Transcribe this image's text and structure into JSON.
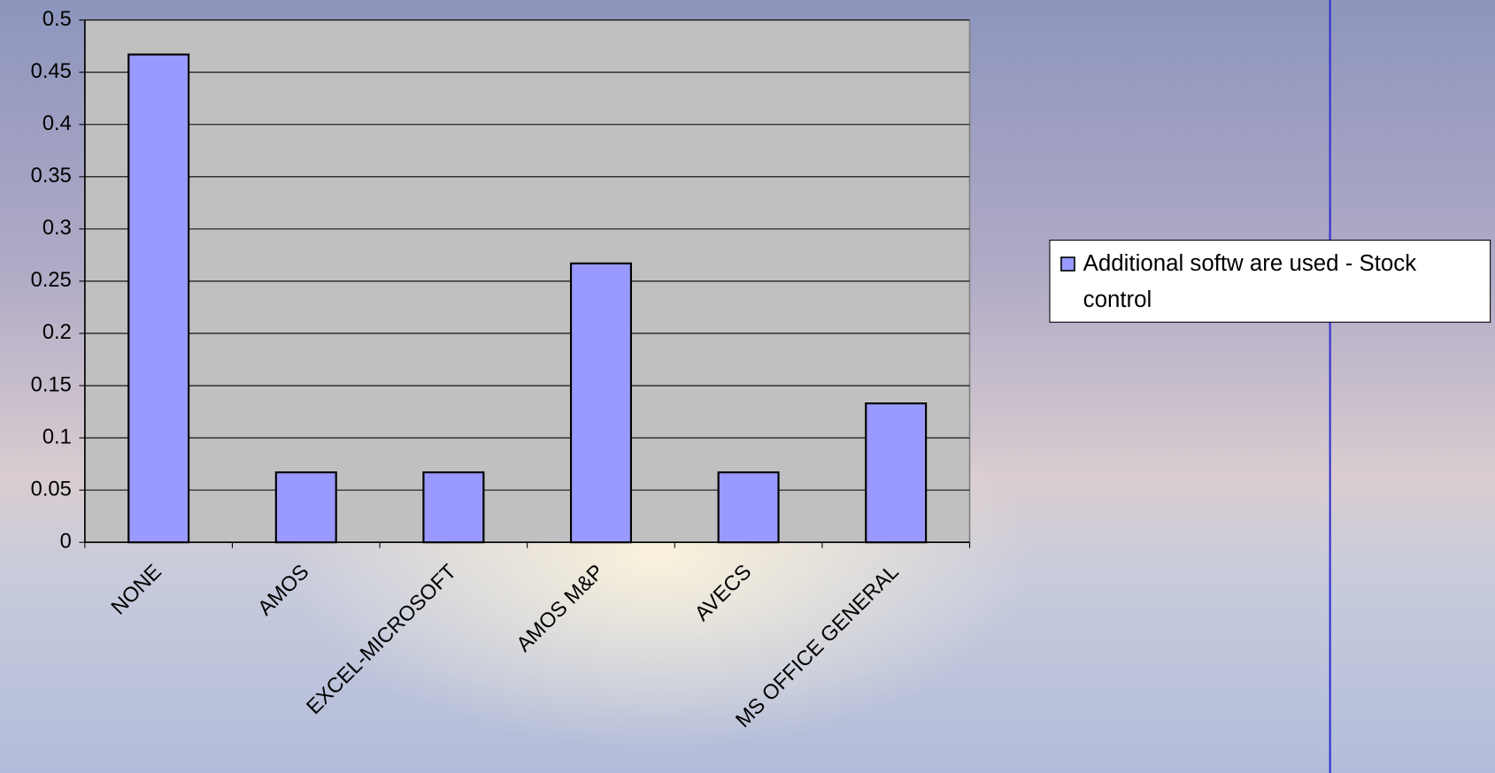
{
  "chart_data": {
    "type": "bar",
    "categories": [
      "NONE",
      "AMOS",
      "EXCEL-MICROSOFT",
      "AMOS M&P",
      "AVECS",
      "MS OFFICE GENERAL"
    ],
    "series": [
      {
        "name": "Additional softw are used - Stock control",
        "color": "#9999ff",
        "values": [
          0.467,
          0.067,
          0.067,
          0.267,
          0.067,
          0.133
        ]
      }
    ],
    "ylim": [
      0,
      0.5
    ],
    "yticks": [
      0,
      0.05,
      0.1,
      0.15,
      0.2,
      0.25,
      0.3,
      0.35,
      0.4,
      0.45,
      0.5
    ],
    "grid": true,
    "legend": "right"
  }
}
